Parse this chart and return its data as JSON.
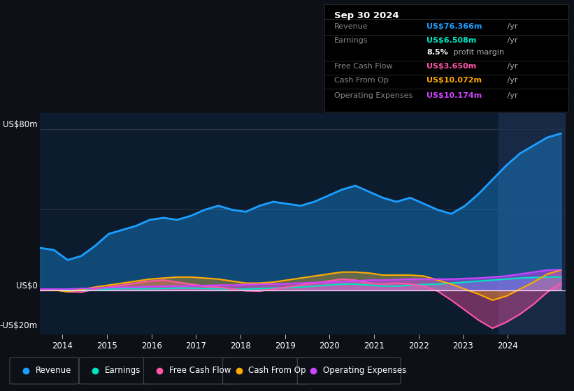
{
  "bg_color": "#0d1117",
  "chart_bg": "#0d1b2e",
  "ylabel_top": "US$80m",
  "ylabel_zero": "US$0",
  "ylabel_neg": "-US$20m",
  "x_ticks": [
    2014,
    2015,
    2016,
    2017,
    2018,
    2019,
    2020,
    2021,
    2022,
    2023,
    2024
  ],
  "ylim": [
    -22,
    88
  ],
  "info_box": {
    "date": "Sep 30 2024",
    "rows": [
      {
        "label": "Revenue",
        "value": "US$76.366m",
        "suffix": " /yr",
        "color": "#1a9fff"
      },
      {
        "label": "Earnings",
        "value": "US$6.508m",
        "suffix": " /yr",
        "color": "#00e5c0"
      },
      {
        "label": "",
        "value": "8.5%",
        "suffix": " profit margin",
        "color": "#ffffff"
      },
      {
        "label": "Free Cash Flow",
        "value": "US$3.650m",
        "suffix": " /yr",
        "color": "#ff55aa"
      },
      {
        "label": "Cash From Op",
        "value": "US$10.072m",
        "suffix": " /yr",
        "color": "#ffaa00"
      },
      {
        "label": "Operating Expenses",
        "value": "US$10.174m",
        "suffix": " /yr",
        "color": "#cc44ff"
      }
    ]
  },
  "legend": [
    {
      "label": "Revenue",
      "color": "#1a9fff"
    },
    {
      "label": "Earnings",
      "color": "#00e5c0"
    },
    {
      "label": "Free Cash Flow",
      "color": "#ff55aa"
    },
    {
      "label": "Cash From Op",
      "color": "#ffaa00"
    },
    {
      "label": "Operating Expenses",
      "color": "#cc44ff"
    }
  ],
  "revenue": [
    21,
    20,
    15,
    17,
    22,
    28,
    30,
    32,
    35,
    36,
    35,
    37,
    40,
    42,
    40,
    39,
    42,
    44,
    43,
    42,
    44,
    47,
    50,
    52,
    49,
    46,
    44,
    46,
    43,
    40,
    38,
    42,
    48,
    55,
    62,
    68,
    72,
    76,
    78
  ],
  "earnings": [
    0.5,
    0.3,
    -0.3,
    0.1,
    0.3,
    0.5,
    0.8,
    0.7,
    0.7,
    0.8,
    1.0,
    1.0,
    0.8,
    0.7,
    0.5,
    0.5,
    0.8,
    1.0,
    1.2,
    1.5,
    2.0,
    2.5,
    3.0,
    3.0,
    2.5,
    2.0,
    2.0,
    2.5,
    2.8,
    3.0,
    3.5,
    4.0,
    4.5,
    5.0,
    5.5,
    6.0,
    6.3,
    6.5,
    6.5
  ],
  "free_cash_flow": [
    -0.2,
    0.3,
    -0.8,
    -1.0,
    0.5,
    1.5,
    2.5,
    3.5,
    4.5,
    5.0,
    4.0,
    3.0,
    2.0,
    1.5,
    0.5,
    -0.3,
    -0.5,
    0.5,
    1.5,
    2.5,
    3.5,
    4.5,
    5.5,
    5.0,
    3.5,
    3.0,
    3.5,
    3.0,
    2.0,
    -0.5,
    -5,
    -10,
    -15,
    -19,
    -16,
    -12,
    -7,
    -1,
    3.5
  ],
  "cash_from_op": [
    0.5,
    0.2,
    -0.8,
    0.3,
    1.5,
    2.5,
    3.5,
    4.5,
    5.5,
    6.0,
    6.5,
    6.5,
    6.0,
    5.5,
    4.5,
    3.5,
    3.5,
    4.0,
    5.0,
    6.0,
    7.0,
    8.0,
    9.0,
    9.0,
    8.5,
    7.5,
    7.5,
    7.5,
    7.0,
    5.0,
    3.0,
    0.5,
    -2,
    -5,
    -3,
    0.5,
    4,
    8,
    10
  ],
  "op_expenses": [
    0.5,
    0.5,
    0.5,
    0.8,
    1.0,
    1.2,
    1.5,
    1.5,
    1.8,
    2.0,
    2.0,
    2.2,
    2.3,
    2.5,
    2.5,
    2.8,
    3.0,
    3.0,
    3.2,
    3.5,
    3.8,
    4.0,
    4.2,
    4.5,
    5.0,
    5.0,
    5.2,
    5.5,
    5.5,
    5.5,
    5.5,
    5.8,
    6.0,
    6.5,
    7.0,
    8.0,
    9.0,
    10.0,
    10.2
  ]
}
